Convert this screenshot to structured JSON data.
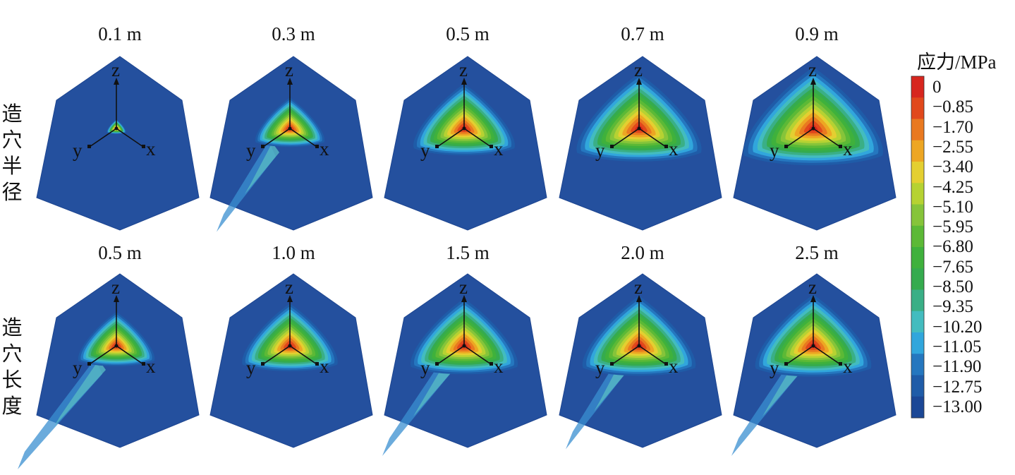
{
  "rows": [
    {
      "label_chars": [
        "造",
        "穴",
        "半",
        "径"
      ],
      "panels": [
        {
          "title": "0.1 m",
          "extent": 0.06,
          "tail": 0.0
        },
        {
          "title": "0.3 m",
          "extent": 0.4,
          "tail": 0.7
        },
        {
          "title": "0.5 m",
          "extent": 0.62,
          "tail": 0.0
        },
        {
          "title": "0.7 m",
          "extent": 0.78,
          "tail": 0.0
        },
        {
          "title": "0.9 m",
          "extent": 0.88,
          "tail": 0.0
        }
      ]
    },
    {
      "label_chars": [
        "造",
        "穴",
        "长",
        "度"
      ],
      "panels": [
        {
          "title": "0.5 m",
          "extent": 0.45,
          "tail": 1.0
        },
        {
          "title": "1.0 m",
          "extent": 0.58,
          "tail": 0.0
        },
        {
          "title": "1.5 m",
          "extent": 0.66,
          "tail": 0.8
        },
        {
          "title": "2.0 m",
          "extent": 0.7,
          "tail": 0.7
        },
        {
          "title": "2.5 m",
          "extent": 0.72,
          "tail": 0.8
        }
      ]
    }
  ],
  "axes_labels": {
    "z": "z",
    "y": "y",
    "x": "x"
  },
  "legend": {
    "title": "应力/MPa",
    "ticks": [
      "0",
      "−0.85",
      "−1.70",
      "−2.55",
      "−3.40",
      "−4.25",
      "−5.10",
      "−5.95",
      "−6.80",
      "−7.65",
      "−8.50",
      "−9.35",
      "−10.20",
      "−11.05",
      "−11.90",
      "−12.75",
      "−13.00"
    ],
    "colors": [
      "#d7261e",
      "#e1481c",
      "#e97920",
      "#eda623",
      "#e4cf31",
      "#b6d232",
      "#86c43a",
      "#5cb936",
      "#3fb13c",
      "#35ab4e",
      "#3aaf86",
      "#43bcbf",
      "#31a6dc",
      "#2577bf",
      "#1f5ca8",
      "#1b4796"
    ]
  },
  "colors": {
    "background_blue": "#24509e"
  }
}
